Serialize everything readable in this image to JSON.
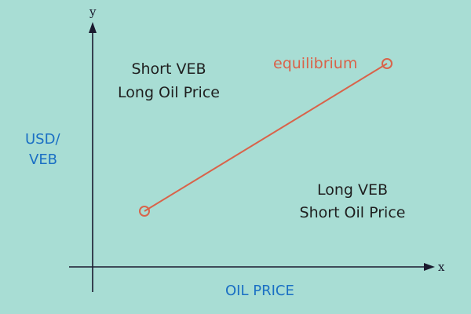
{
  "axes": {
    "y_letter": "y",
    "x_letter": "x"
  },
  "y_label": [
    "USD/",
    "VEB"
  ],
  "x_label": "OIL PRICE",
  "region_top_left": [
    "Short VEB",
    "Long Oil Price"
  ],
  "region_bottom_right": [
    "Long VEB",
    "Short Oil Price"
  ],
  "line_label": "equilibrium",
  "colors": {
    "background": "#a8ddd4",
    "axis": "#1a1a2e",
    "line": "#d9634a",
    "axis_label": "#1a6fc4"
  }
}
